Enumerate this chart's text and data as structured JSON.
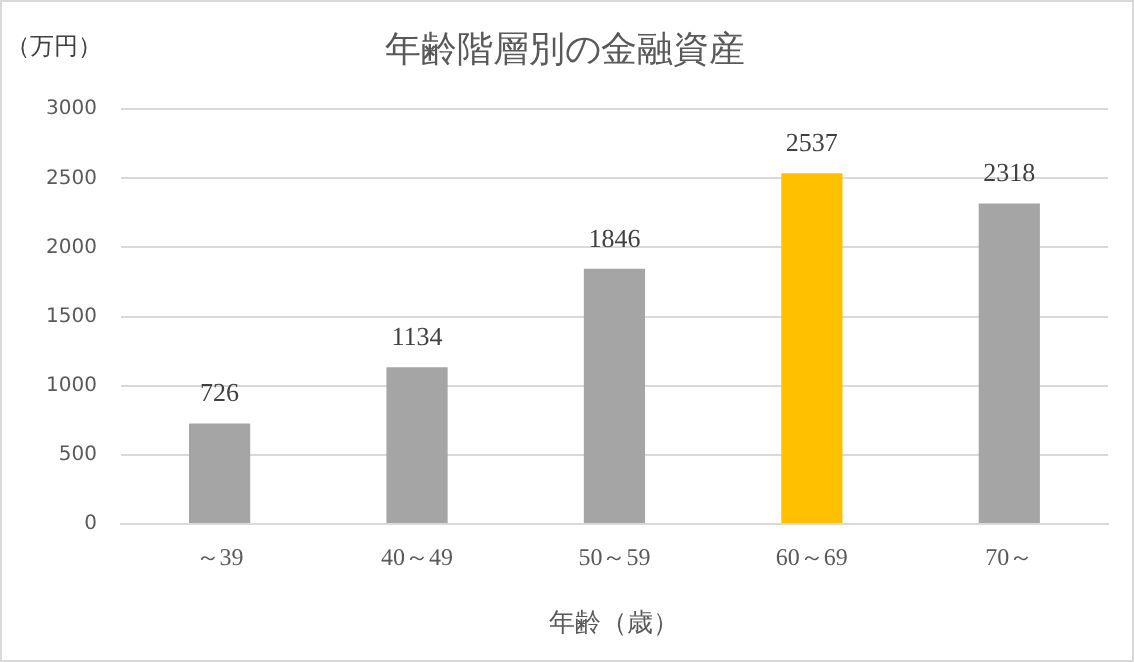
{
  "chart_data": {
    "type": "bar",
    "title": "年齢階層別の金融資産",
    "ylabel": "（万円）",
    "xlabel": "年齢（歳）",
    "categories": [
      "～39",
      "40～49",
      "50～59",
      "60～69",
      "70～"
    ],
    "values": [
      726,
      1134,
      1846,
      2537,
      2318
    ],
    "colors": [
      "#a5a5a5",
      "#a5a5a5",
      "#a5a5a5",
      "#ffc000",
      "#a5a5a5"
    ],
    "ylim": [
      0,
      3000
    ],
    "yticks": [
      0,
      500,
      1000,
      1500,
      2000,
      2500,
      3000
    ],
    "grid": "y",
    "data_labels": true,
    "legend": false
  }
}
